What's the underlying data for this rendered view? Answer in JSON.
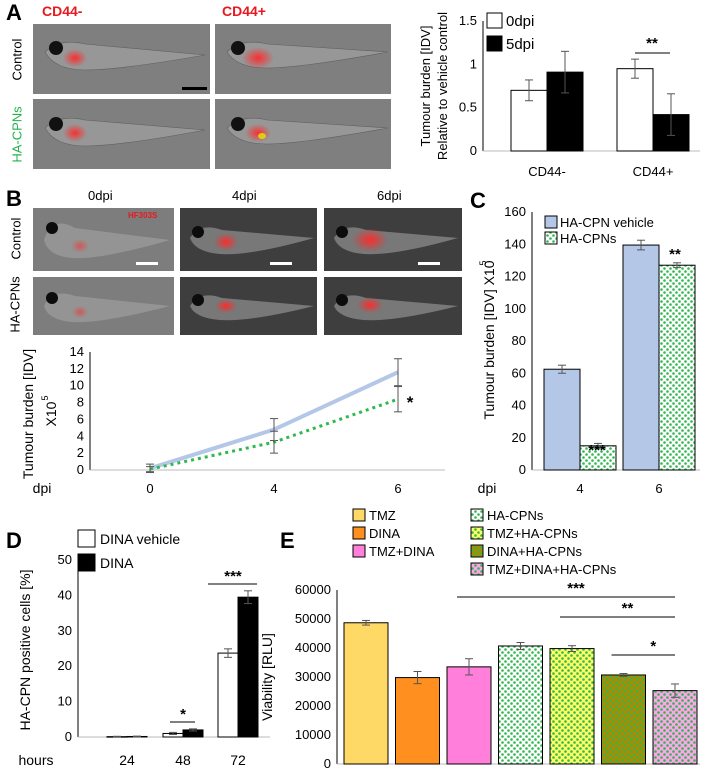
{
  "panels": {
    "A": {
      "label": "A",
      "columns": [
        "CD44-",
        "CD44+"
      ],
      "rows": [
        "Control",
        "HA-CPNs"
      ],
      "colors": {
        "CD44-": "#e8191e",
        "CD44+": "#e8191e",
        "HA-CPNs": "#22b14c"
      }
    },
    "B": {
      "label": "B",
      "columns": [
        "0dpi",
        "4dpi",
        "6dpi"
      ],
      "rows": [
        "Control",
        "HA-CPNs"
      ],
      "overlay": "HF303S",
      "asterisk": "*",
      "xprefix": "dpi"
    },
    "C": {
      "label": "C",
      "xprefix": "dpi"
    },
    "D": {
      "label": "D",
      "xprefix": "hours"
    },
    "E": {
      "label": "E"
    }
  },
  "chart_data": [
    {
      "id": "A",
      "type": "bar",
      "ylabel": "Tumour burden [IDV]",
      "ylabel2": "Relative to vehicle control",
      "categories": [
        "CD44-",
        "CD44+"
      ],
      "ylim": [
        0,
        1.5
      ],
      "yticks": [
        0,
        0.5,
        1,
        1.5
      ],
      "ytick_labels": [
        "0",
        "0.5",
        "1",
        "1.5"
      ],
      "series": [
        {
          "name": "0dpi",
          "values": [
            0.7,
            0.95
          ],
          "errors": [
            0.12,
            0.11
          ],
          "color": "#ffffff"
        },
        {
          "name": "5dpi",
          "values": [
            0.91,
            0.42
          ],
          "errors": [
            0.24,
            0.24
          ],
          "color": "#000000"
        }
      ],
      "significance": [
        {
          "category": "CD44+",
          "label": "**"
        }
      ]
    },
    {
      "id": "B",
      "type": "line",
      "ylabel": "Tumour burden [IDV]",
      "ylabel2": "X10",
      "ylabel2_sup": "5",
      "x": [
        0,
        4,
        6
      ],
      "xtick_labels": [
        "0",
        "4",
        "6"
      ],
      "ylim": [
        0,
        14
      ],
      "yticks": [
        0,
        2,
        4,
        6,
        8,
        10,
        12,
        14
      ],
      "ytick_labels": [
        "0",
        "2",
        "4",
        "6",
        "8",
        "10",
        "12",
        "14"
      ],
      "series": [
        {
          "name": "HA-CPN vehicle",
          "values": [
            0.2,
            4.8,
            11.6
          ],
          "errors": [
            0.5,
            1.3,
            1.6
          ],
          "color": "#b4c7e7",
          "style": "solid"
        },
        {
          "name": "HA-CPNs",
          "values": [
            0.1,
            3.3,
            8.4
          ],
          "errors": [
            0.3,
            1.3,
            1.5
          ],
          "color": "#2eb84d",
          "style": "dotted"
        }
      ]
    },
    {
      "id": "C",
      "type": "bar",
      "ylabel": "Tumour burden [IDV] X10",
      "ylabel_sup": "5",
      "categories": [
        "4",
        "6"
      ],
      "ylim": [
        0,
        160
      ],
      "yticks": [
        0,
        20,
        40,
        60,
        80,
        100,
        120,
        140,
        160
      ],
      "ytick_labels": [
        "0",
        "20",
        "40",
        "60",
        "80",
        "100",
        "120",
        "140",
        "160"
      ],
      "series": [
        {
          "name": "HA-CPN vehicle",
          "values": [
            62.5,
            139.5
          ],
          "errors": [
            2.5,
            3
          ],
          "color": "#b4c7e7"
        },
        {
          "name": "HA-CPNs",
          "values": [
            15,
            127
          ],
          "errors": [
            1.5,
            1.5
          ],
          "color": "#2eb84d",
          "pattern": "dots"
        }
      ],
      "significance": [
        {
          "category": "4",
          "label": "***"
        },
        {
          "category": "6",
          "label": "**"
        }
      ]
    },
    {
      "id": "D",
      "type": "bar",
      "ylabel": "HA-CPN positive cells [%]",
      "categories": [
        "24",
        "48",
        "72"
      ],
      "ylim": [
        0,
        50
      ],
      "yticks": [
        0,
        10,
        20,
        30,
        40,
        50
      ],
      "ytick_labels": [
        "0",
        "10",
        "20",
        "30",
        "40",
        "50"
      ],
      "series": [
        {
          "name": "DINA vehicle",
          "values": [
            0.1,
            1.0,
            23.7
          ],
          "errors": [
            0.1,
            0.3,
            1.2
          ],
          "color": "#ffffff"
        },
        {
          "name": "DINA",
          "values": [
            0.15,
            2.0,
            39.5
          ],
          "errors": [
            0.1,
            0.3,
            1.8
          ],
          "color": "#000000"
        }
      ],
      "significance": [
        {
          "category": "48",
          "label": "*"
        },
        {
          "category": "72",
          "label": "***"
        }
      ]
    },
    {
      "id": "E",
      "type": "bar",
      "ylabel": "Viability [RLU]",
      "categories": [
        "TMZ",
        "DINA",
        "TMZ+DINA",
        "HA-CPNs",
        "TMZ+HA-CPNs",
        "DINA+HA-CPNs",
        "TMZ+DINA+HA-CPNs"
      ],
      "values": [
        48700,
        29800,
        33500,
        40700,
        39800,
        30700,
        25300
      ],
      "errors": [
        800,
        2100,
        2800,
        1200,
        1000,
        500,
        2300
      ],
      "colors": [
        "#ffd966",
        "#ff8f1f",
        "#ff7fda",
        "#ffffff",
        "#ffff66",
        "#ad8b00",
        "#ffa6ea"
      ],
      "patterns": [
        false,
        false,
        false,
        true,
        true,
        true,
        true
      ],
      "ylim": [
        0,
        60000
      ],
      "yticks": [
        0,
        10000,
        20000,
        30000,
        40000,
        50000,
        60000
      ],
      "ytick_labels": [
        "0",
        "10000",
        "20000",
        "30000",
        "40000",
        "50000",
        "60000"
      ],
      "significance": [
        {
          "from": "TMZ+DINA",
          "to": "TMZ+DINA+HA-CPNs",
          "label": "***"
        },
        {
          "from": "TMZ+HA-CPNs",
          "to": "TMZ+DINA+HA-CPNs",
          "label": "**"
        },
        {
          "from": "DINA+HA-CPNs",
          "to": "TMZ+DINA+HA-CPNs",
          "label": "*"
        }
      ]
    }
  ]
}
